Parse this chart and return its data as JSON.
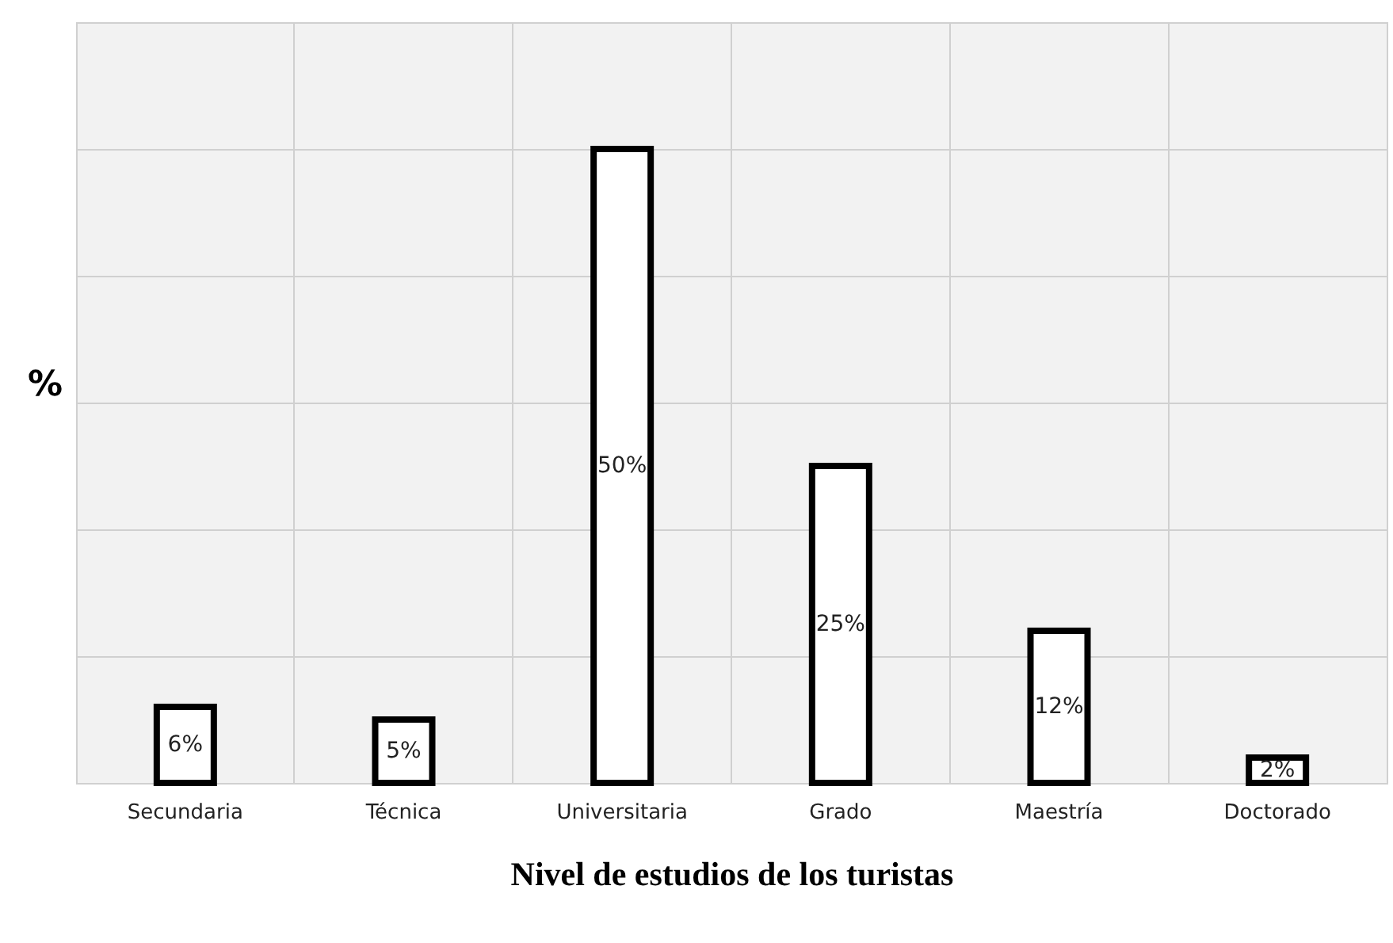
{
  "chart_data": {
    "type": "bar",
    "xlabel": "Nivel de estudios de los turistas",
    "ylabel": "%",
    "categories": [
      "Secundaria",
      "Técnica",
      "Universitaria",
      "Grado",
      "Maestría",
      "Doctorado"
    ],
    "values": [
      6,
      5,
      50,
      25,
      12,
      2
    ],
    "value_labels": [
      "6%",
      "5%",
      "50%",
      "25%",
      "12%",
      "2%"
    ],
    "color": "#ffffff",
    "ylim": [
      0,
      60
    ],
    "yticks": [
      {
        "value": 0,
        "label": null
      },
      {
        "value": 10,
        "label": null
      },
      {
        "value": 20,
        "label": null
      },
      {
        "value": 30,
        "label": null
      },
      {
        "value": 40,
        "label": null
      },
      {
        "value": 50,
        "label": null
      },
      {
        "value": 60,
        "label": null
      }
    ],
    "tick_labels": "x",
    "grid": true
  }
}
